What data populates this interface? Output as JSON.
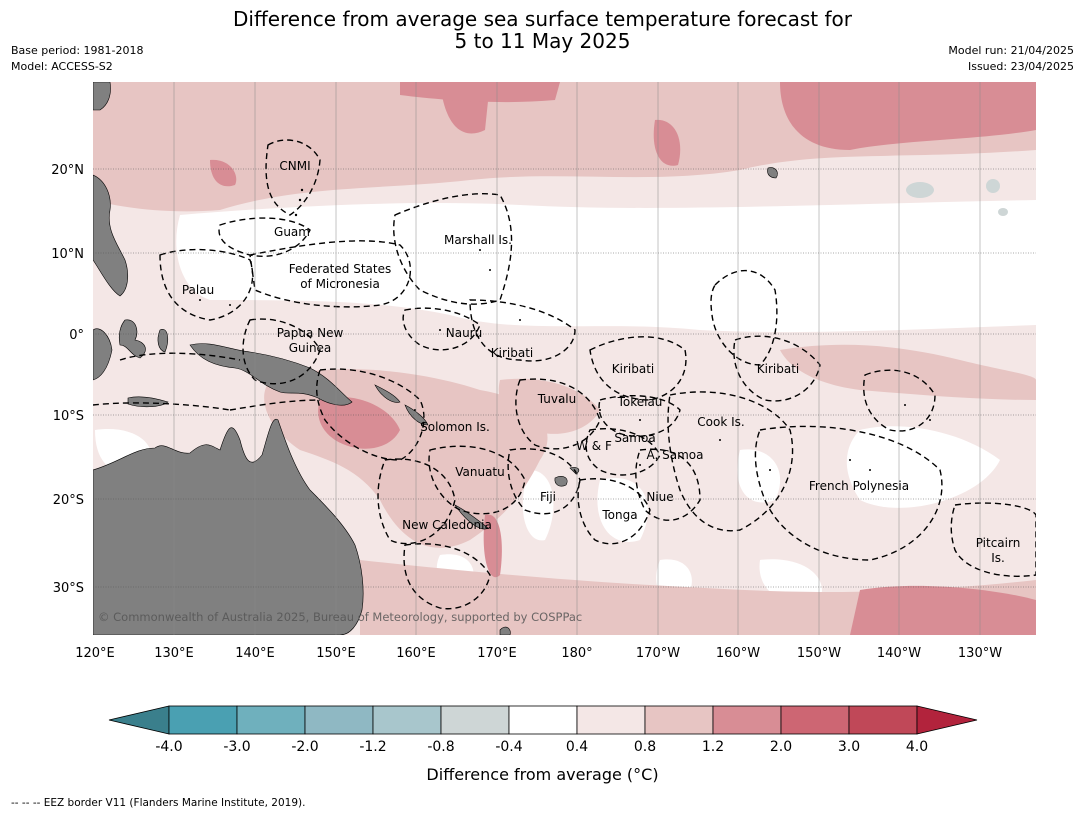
{
  "title_line1": "Difference from average sea surface temperature forecast for",
  "title_line2": "5 to 11 May 2025",
  "meta_left": {
    "line1": "Base period: 1981-2018",
    "line2": "Model: ACCESS-S2"
  },
  "meta_right": {
    "line1": "Model run: 21/04/2025",
    "line2": "Issued: 23/04/2025"
  },
  "lat_labels": [
    "20°N",
    "10°N",
    "0°",
    "10°S",
    "20°S",
    "30°S"
  ],
  "lon_labels": [
    "120°E",
    "130°E",
    "140°E",
    "150°E",
    "160°E",
    "170°E",
    "180°",
    "170°W",
    "160°W",
    "150°W",
    "140°W",
    "130°W"
  ],
  "regions": [
    "CNMI",
    "Guam",
    "Marshall Is.",
    "Federated States",
    "of Micronesia",
    "Palau",
    "Papua New",
    "Guinea",
    "Nauru",
    "Kiribati",
    "Kiribati",
    "Kiribati",
    "Tuvalu",
    "Tokelau",
    "Solomon Is.",
    "Samoa",
    "W & F",
    "A. Samoa",
    "Cook Is.",
    "Vanuatu",
    "Fiji",
    "Niue",
    "French Polynesia",
    "Tonga",
    "New Caledonia",
    "Pitcairn",
    "Is."
  ],
  "copyright": "© Commonwealth of Australia 2025, Bureau of Meteorology, supported by COSPPac",
  "colorbar": {
    "ticks": [
      "-4.0",
      "-3.0",
      "-2.0",
      "-1.2",
      "-0.8",
      "-0.4",
      "0.4",
      "0.8",
      "1.2",
      "2.0",
      "3.0",
      "4.0"
    ],
    "colors": [
      "#3a7f8c",
      "#4aa0b2",
      "#6fb0bd",
      "#8fb8c3",
      "#a8c6cc",
      "#ced6d6",
      "#ffffff",
      "#f4e7e6",
      "#e7c5c3",
      "#d88d95",
      "#cd6673",
      "#c04858",
      "#b2233c"
    ],
    "label": "Difference from average (°C)"
  },
  "footer": "--  --  -- EEZ border V11 (Flanders Marine Institute, 2019)."
}
